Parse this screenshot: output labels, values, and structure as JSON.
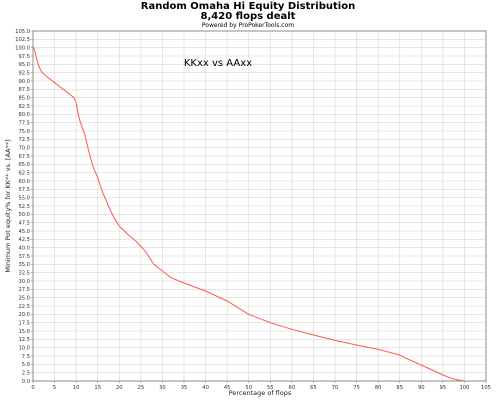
{
  "chart_data": {
    "type": "line",
    "title": "Random Omaha Hi Equity Distribution",
    "subtitle": "8,420 flops dealt",
    "credit": "Powered by ProPokerTools.com",
    "annotation": "KKxx vs AAxx",
    "xlabel": "Percentage of flops",
    "ylabel": "Minimum Pot equity% for KK** vs. [AA**]",
    "xlim": [
      0,
      105
    ],
    "ylim": [
      0,
      105
    ],
    "x_ticks": [
      0,
      5,
      10,
      15,
      20,
      25,
      30,
      35,
      40,
      45,
      50,
      55,
      60,
      65,
      70,
      75,
      80,
      85,
      90,
      95,
      100,
      105
    ],
    "y_ticks": [
      0.0,
      2.5,
      5.0,
      7.5,
      10.0,
      12.5,
      15.0,
      17.5,
      20.0,
      22.5,
      25.0,
      27.5,
      30.0,
      32.5,
      35.0,
      37.5,
      40.0,
      42.5,
      45.0,
      47.5,
      50.0,
      52.5,
      55.0,
      57.5,
      60.0,
      62.5,
      65.0,
      67.5,
      70.0,
      72.5,
      75.0,
      77.5,
      80.0,
      82.5,
      85.0,
      87.5,
      90.0,
      92.5,
      95.0,
      97.5,
      100.0,
      102.5,
      105.0
    ],
    "grid": true,
    "series": [
      {
        "color": "#ff5a4a",
        "x": [
          0,
          0.5,
          1,
          1.5,
          2,
          3,
          4,
          5,
          6,
          7,
          8,
          9,
          9.5,
          10,
          10.5,
          11,
          12,
          13,
          14,
          15,
          16,
          17,
          18,
          19,
          20,
          22,
          24,
          26,
          27,
          28,
          30,
          32,
          35,
          40,
          45,
          50,
          55,
          60,
          65,
          70,
          75,
          80,
          85,
          87,
          90,
          93,
          95,
          97,
          98.5,
          100
        ],
        "y": [
          100.5,
          98.5,
          96.0,
          94.0,
          92.7,
          91.5,
          90.5,
          89.5,
          88.5,
          87.5,
          86.5,
          85.5,
          85.0,
          83.5,
          80.0,
          77.5,
          74.0,
          68.5,
          64.0,
          61.0,
          57.0,
          54.0,
          51.0,
          48.5,
          46.5,
          44.0,
          41.8,
          39.0,
          37.0,
          35.0,
          33.0,
          31.0,
          29.4,
          27.0,
          24.0,
          20.0,
          17.5,
          15.5,
          13.8,
          12.2,
          10.8,
          9.5,
          7.8,
          6.5,
          4.8,
          3.0,
          1.8,
          0.8,
          0.3,
          0.0
        ]
      }
    ]
  }
}
